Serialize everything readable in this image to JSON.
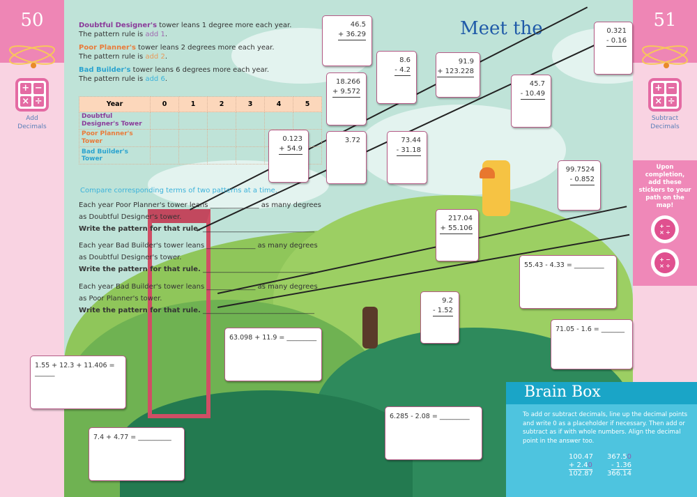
{
  "left_page": {
    "number": "50",
    "topic": "Add Decimals"
  },
  "right_page": {
    "number": "51",
    "topic": "Subtract Decimals",
    "sticker_note": "Upon completion, add these stickers to your path on the map!"
  },
  "title": "Meet the",
  "patterns": [
    {
      "name": "Doubtful Designer's",
      "rest": " tower leans 1 degree more each year.",
      "rule_prefix": "The pattern rule is ",
      "rule": "add 1",
      "rule_suffix": "."
    },
    {
      "name": "Poor Planner's",
      "rest": " tower leans 2 degrees more each year.",
      "rule_prefix": "The pattern rule is ",
      "rule": "add 2",
      "rule_suffix": "."
    },
    {
      "name": "Bad Builder's",
      "rest": " tower leans 6 degrees more each year.",
      "rule_prefix": "The pattern rule is ",
      "rule": "add 6",
      "rule_suffix": "."
    }
  ],
  "table": {
    "header": [
      "Year",
      "0",
      "1",
      "2",
      "3",
      "4",
      "5"
    ],
    "rows": [
      "Doubtful Designer's Tower",
      "Poor Planner's Tower",
      "Bad Builder's Tower"
    ]
  },
  "compare": {
    "heading": "Compare corresponding terms of two patterns at a time.",
    "items": [
      {
        "l1": "Each year Poor Planner's tower leans",
        "l1b": "as many degrees",
        "l2": "as Doubtful Designer's tower.",
        "l3": "Write the pattern for that rule."
      },
      {
        "l1": "Each year Bad Builder's tower leans",
        "l1b": "as many degrees",
        "l2": "as Doubtful Designer's tower.",
        "l3": "Write the pattern for that rule."
      },
      {
        "l1": "Each year Bad Builder's tower leans",
        "l1b": "as many degrees",
        "l2": "as Poor Planner's tower.",
        "l3": "Write the pattern for that rule."
      }
    ]
  },
  "vertical_stickers": [
    {
      "a": "46.5",
      "b": "+ 36.29"
    },
    {
      "a": "3.72",
      "b": ""
    },
    {
      "a": "18.266",
      "b": "+ 9.572"
    },
    {
      "a": "0.123",
      "b": "+ 54.9"
    },
    {
      "a": "91.9",
      "b": "+ 123.228"
    },
    {
      "a": "217.04",
      "b": "+ 55.106"
    },
    {
      "a": "8.6",
      "b": "- 4.2"
    },
    {
      "a": "45.7",
      "b": "- 10.49"
    },
    {
      "a": "0.321",
      "b": "- 0.16"
    },
    {
      "a": "73.44",
      "b": "- 31.18"
    },
    {
      "a": "99.7524",
      "b": "- 0.852"
    },
    {
      "a": "9.2",
      "b": "- 1.52"
    }
  ],
  "equation_stickers": [
    "55.43 - 4.33 = ",
    "71.05 - 1.6 = ",
    "63.098 + 11.9 = ",
    "1.55 + 12.3 + 11.406 = ",
    "7.4 + 4.77 = ",
    "6.285 - 2.08 = "
  ],
  "brain_box": {
    "title": "Brain Box",
    "text": "To add or subtract decimals, line up the decimal points and write 0 as a placeholder if necessary. Then add or subtract as if with whole numbers. Align the decimal point in the answer too.",
    "ex1": {
      "a": "100.47",
      "b_prefix": "+ 2.4",
      "b_placeholder": "0",
      "result": "102.87"
    },
    "ex2": {
      "a_prefix": "367.5",
      "a_placeholder": "0",
      "b": "- 1.36",
      "result": "366.14"
    }
  },
  "colors": {
    "pink": "#ee86b5",
    "light_pink": "#f9d3e2",
    "sky": "#bfe3d8",
    "brain_header": "#1aa5c7",
    "brain_body": "#4ec4df",
    "title_blue": "#1f5aa8"
  }
}
